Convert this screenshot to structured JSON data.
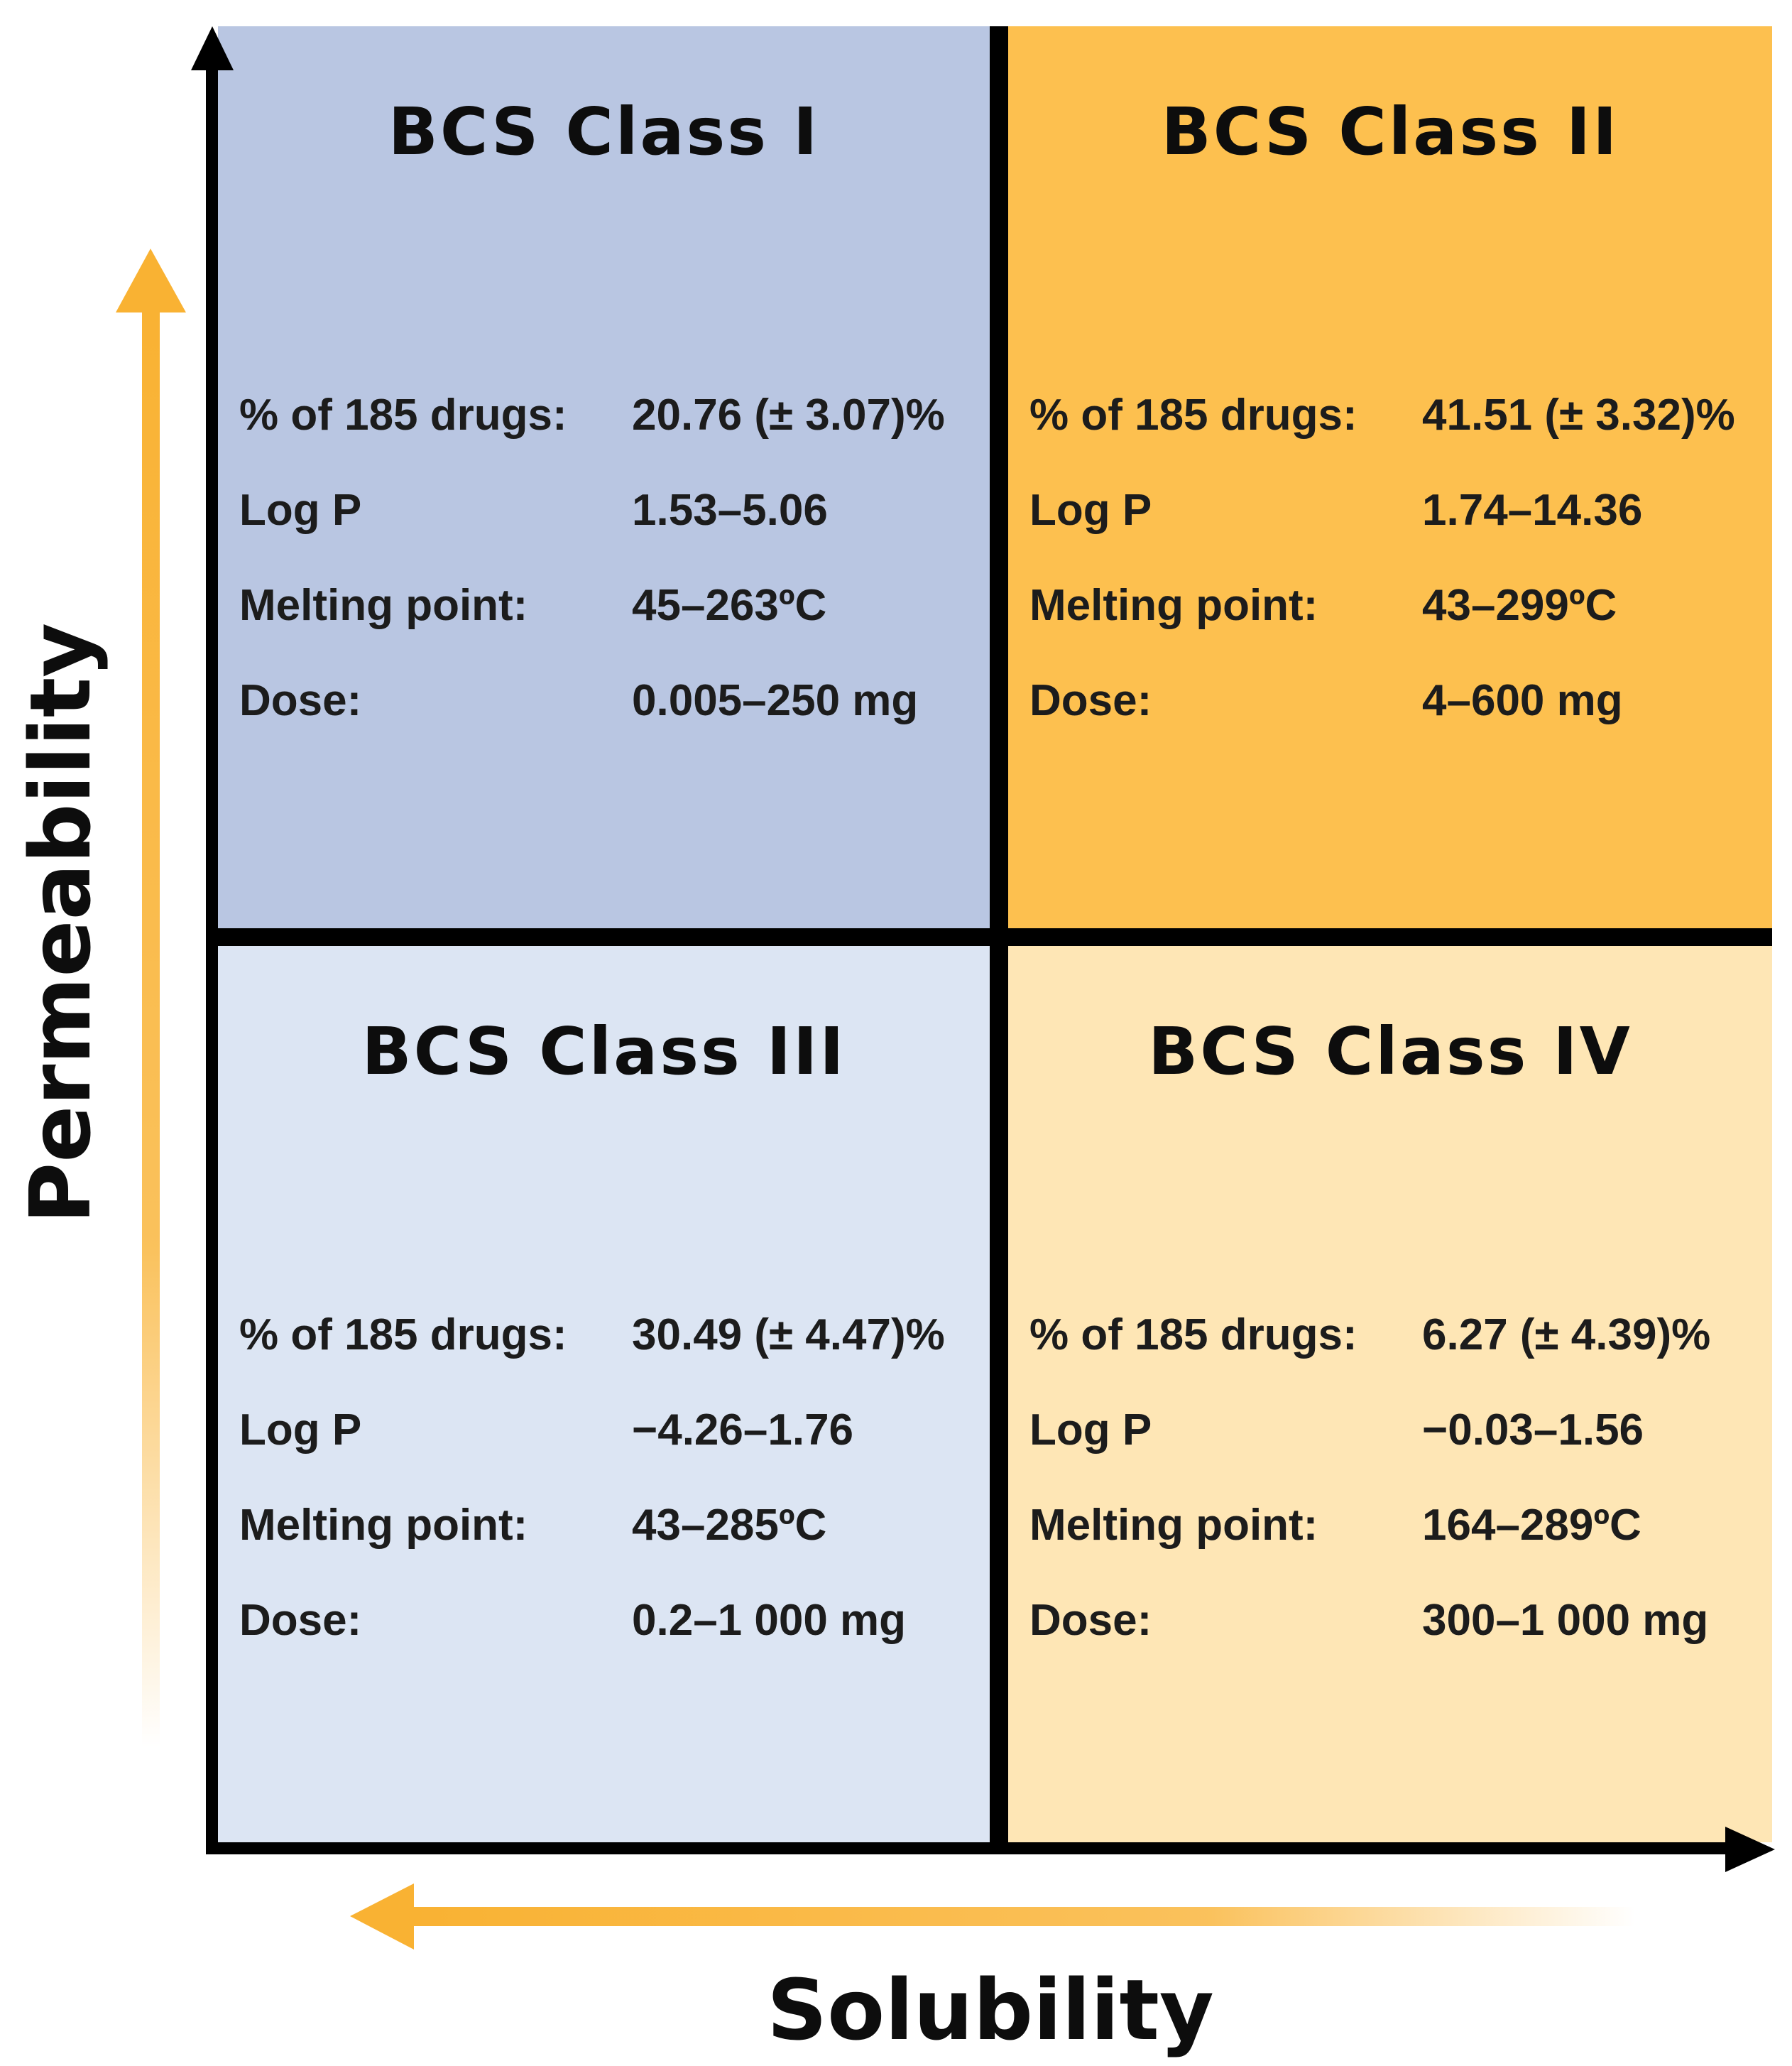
{
  "axes": {
    "y_label": "Permeability",
    "x_label": "Solubility"
  },
  "colors": {
    "class_1": "#b9c6e2",
    "class_2": "#fdc04f",
    "class_3": "#dce5f3",
    "class_4": "#fee6b5",
    "arrow": "#f9b233"
  },
  "quadrants": [
    {
      "title": "BCS Class I",
      "stats": [
        {
          "label": "% of 185 drugs:",
          "value": "20.76 (± 3.07)%"
        },
        {
          "label": "Log P",
          "value": "1.53–5.06"
        },
        {
          "label": "Melting point:",
          "value": "45–263ºC"
        },
        {
          "label": "Dose:",
          "value": "0.005–250 mg"
        }
      ]
    },
    {
      "title": "BCS Class II",
      "stats": [
        {
          "label": "% of 185 drugs:",
          "value": "41.51 (± 3.32)%"
        },
        {
          "label": "Log P",
          "value": "1.74–14.36"
        },
        {
          "label": "Melting point:",
          "value": "43–299ºC"
        },
        {
          "label": "Dose:",
          "value": "4–600 mg"
        }
      ]
    },
    {
      "title": "BCS Class III",
      "stats": [
        {
          "label": "% of 185 drugs:",
          "value": "30.49 (± 4.47)%"
        },
        {
          "label": "Log P",
          "value": "−4.26–1.76"
        },
        {
          "label": "Melting point:",
          "value": "43–285ºC"
        },
        {
          "label": "Dose:",
          "value": "0.2–1 000 mg"
        }
      ]
    },
    {
      "title": "BCS Class IV",
      "stats": [
        {
          "label": "% of 185 drugs:",
          "value": "6.27 (± 4.39)%"
        },
        {
          "label": "Log P",
          "value": "−0.03–1.56"
        },
        {
          "label": "Melting point:",
          "value": "164–289ºC"
        },
        {
          "label": "Dose:",
          "value": "300–1 000 mg"
        }
      ]
    }
  ]
}
